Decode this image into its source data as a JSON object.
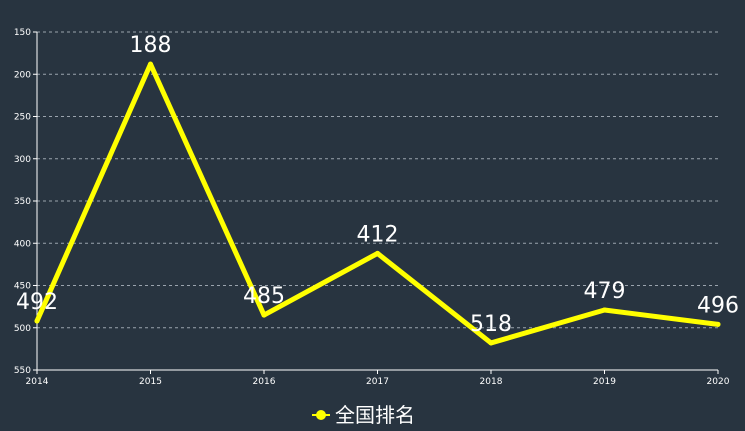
{
  "chart_data": {
    "type": "line",
    "x": [
      "2014",
      "2015",
      "2016",
      "2017",
      "2018",
      "2019",
      "2020"
    ],
    "series": [
      {
        "name": "全国排名",
        "values": [
          492,
          188,
          485,
          412,
          518,
          479,
          496
        ],
        "color": "#ffff00"
      }
    ],
    "y_ticks": [
      150,
      200,
      250,
      300,
      350,
      400,
      450,
      500,
      550
    ],
    "ylim": [
      150,
      550
    ],
    "y_inverted": true,
    "grid": true,
    "legend_position": "bottom-center",
    "colors": {
      "background": "#283440",
      "grid": "#9aa3ad",
      "axis": "#ffffff",
      "text": "#ffffff",
      "line": "#ffff00"
    }
  }
}
